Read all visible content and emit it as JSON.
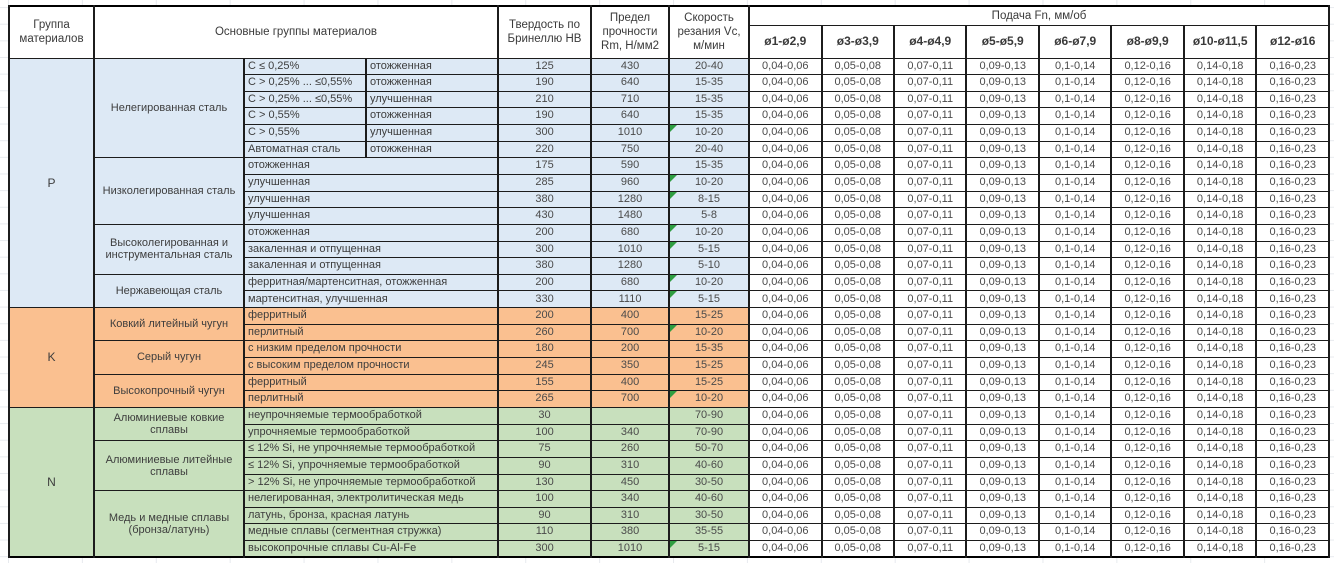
{
  "header": {
    "col_group": "Группа материалов",
    "col_material": "Основные группы материалов",
    "col_hb": "Твердость по Бринеллю HB",
    "col_rm": "Предел прочности Rm, Н/мм2",
    "col_vc": "Скорость резания Vc, м/мин",
    "col_feed": "Подача Fn, мм/об"
  },
  "feed_columns": [
    "ø1-ø2,9",
    "ø3-ø3,9",
    "ø4-ø4,9",
    "ø5-ø5,9",
    "ø6-ø7,9",
    "ø8-ø9,9",
    "ø10-ø11,5",
    "ø12-ø16"
  ],
  "feed_values": [
    "0,04-0,06",
    "0,05-0,08",
    "0,07-0,11",
    "0,09-0,13",
    "0,1-0,14",
    "0,12-0,16",
    "0,14-0,18",
    "0,16-0,23"
  ],
  "colors": {
    "steel_blue": "#dde9f5",
    "cast_iron_orange": "#fac090",
    "nonferrous_green": "#c8e0bd",
    "note_triangle_green": "#2f9e41"
  },
  "groups": [
    {
      "code": "P",
      "color": "#dde9f5",
      "families": [
        {
          "name": "Нелегированная сталь",
          "rows": [
            {
              "sub1": "C ≤ 0,25%",
              "sub2": "отожженная",
              "hb": "125",
              "rm": "430",
              "vc": "20-40",
              "note": false
            },
            {
              "sub1": "C > 0,25% ... ≤0,55%",
              "sub2": "отожженная",
              "hb": "190",
              "rm": "640",
              "vc": "15-35",
              "note": false
            },
            {
              "sub1": "C > 0,25% ... ≤0,55%",
              "sub2": "улучшенная",
              "hb": "210",
              "rm": "710",
              "vc": "15-35",
              "note": false
            },
            {
              "sub1": "C > 0,55%",
              "sub2": "отожженная",
              "hb": "190",
              "rm": "640",
              "vc": "15-35",
              "note": false
            },
            {
              "sub1": "C > 0,55%",
              "sub2": "улучшенная",
              "hb": "300",
              "rm": "1010",
              "vc": "10-20",
              "note": true
            },
            {
              "sub1": "Автоматная сталь",
              "sub2": "отожженная",
              "hb": "220",
              "rm": "750",
              "vc": "20-40",
              "note": false
            }
          ]
        },
        {
          "name": "Низколегированная сталь",
          "rows": [
            {
              "sub": "отожженная",
              "hb": "175",
              "rm": "590",
              "vc": "15-35",
              "note": false
            },
            {
              "sub": "улучшенная",
              "hb": "285",
              "rm": "960",
              "vc": "10-20",
              "note": true
            },
            {
              "sub": "улучшенная",
              "hb": "380",
              "rm": "1280",
              "vc": "8-15",
              "note": true
            },
            {
              "sub": "улучшенная",
              "hb": "430",
              "rm": "1480",
              "vc": "5-8",
              "note": false
            }
          ]
        },
        {
          "name": "Высоколегированная и инструментальная сталь",
          "rows": [
            {
              "sub": "отожженная",
              "hb": "200",
              "rm": "680",
              "vc": "10-20",
              "note": true
            },
            {
              "sub": "закаленная и отпущенная",
              "hb": "300",
              "rm": "1010",
              "vc": "5-15",
              "note": true
            },
            {
              "sub": "закаленная и отпущенная",
              "hb": "380",
              "rm": "1280",
              "vc": "5-10",
              "note": false
            }
          ]
        },
        {
          "name": "Нержавеющая сталь",
          "rows": [
            {
              "sub": "ферритная/мартенситная, отожженная",
              "hb": "200",
              "rm": "680",
              "vc": "10-20",
              "note": true
            },
            {
              "sub": "мартенситная, улучшенная",
              "hb": "330",
              "rm": "1110",
              "vc": "5-15",
              "note": true
            }
          ]
        }
      ]
    },
    {
      "code": "K",
      "color": "#fac090",
      "families": [
        {
          "name": "Ковкий литейный чугун",
          "rows": [
            {
              "sub": "ферритный",
              "hb": "200",
              "rm": "400",
              "vc": "15-25",
              "note": false
            },
            {
              "sub": "перлитный",
              "hb": "260",
              "rm": "700",
              "vc": "10-20",
              "note": true
            }
          ]
        },
        {
          "name": "Серый чугун",
          "rows": [
            {
              "sub": "с низким пределом прочности",
              "hb": "180",
              "rm": "200",
              "vc": "15-35",
              "note": false
            },
            {
              "sub": "с высоким пределом прочности",
              "hb": "245",
              "rm": "350",
              "vc": "15-25",
              "note": false
            }
          ]
        },
        {
          "name": "Высокопрочный чугун",
          "rows": [
            {
              "sub": "ферритный",
              "hb": "155",
              "rm": "400",
              "vc": "15-25",
              "note": false
            },
            {
              "sub": "перлитный",
              "hb": "265",
              "rm": "700",
              "vc": "10-20",
              "note": true
            }
          ]
        }
      ]
    },
    {
      "code": "N",
      "color": "#c8e0bd",
      "families": [
        {
          "name": "Алюминиевые ковкие сплавы",
          "rows": [
            {
              "sub": "неупрочняемые термообработкой",
              "hb": "30",
              "rm": "",
              "vc": "70-90",
              "note": false
            },
            {
              "sub": "упрочняемые термообработкой",
              "hb": "100",
              "rm": "340",
              "vc": "70-90",
              "note": false
            }
          ]
        },
        {
          "name": "Алюминиевые литейные сплавы",
          "rows": [
            {
              "sub": "≤ 12% Si, не упрочняемые термообработкой",
              "hb": "75",
              "rm": "260",
              "vc": "50-70",
              "note": false
            },
            {
              "sub": "≤ 12% Si, упрочняемые термообработкой",
              "hb": "90",
              "rm": "310",
              "vc": "40-60",
              "note": false
            },
            {
              "sub": "> 12% Si, не упрочняемые термообработкой",
              "hb": "130",
              "rm": "450",
              "vc": "30-50",
              "note": false
            }
          ]
        },
        {
          "name": "Медь и медные сплавы (бронза/латунь)",
          "rows": [
            {
              "sub": "нелегированная, электролитическая медь",
              "hb": "100",
              "rm": "340",
              "vc": "40-60",
              "note": false
            },
            {
              "sub": "латунь, бронза, красная латунь",
              "hb": "90",
              "rm": "310",
              "vc": "30-50",
              "note": false
            },
            {
              "sub": "медные сплавы (сегментная стружка)",
              "hb": "110",
              "rm": "380",
              "vc": "35-55",
              "note": false
            },
            {
              "sub": "высокопрочные сплавы Cu-Al-Fe",
              "hb": "300",
              "rm": "1010",
              "vc": "5-15",
              "note": true
            }
          ]
        }
      ]
    }
  ]
}
